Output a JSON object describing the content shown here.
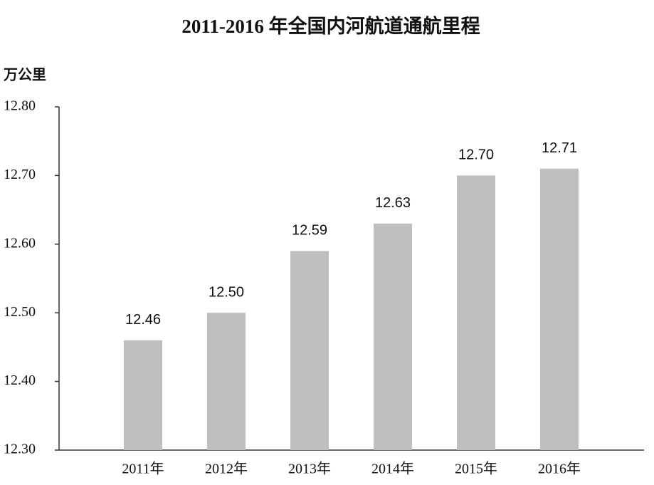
{
  "chart_data": {
    "type": "bar",
    "title": "2011-2016 年全国内河航道通航里程",
    "y_label": "万公里",
    "categories": [
      "2011年",
      "2012年",
      "2013年",
      "2014年",
      "2015年",
      "2016年"
    ],
    "values": [
      12.46,
      12.5,
      12.59,
      12.63,
      12.7,
      12.71
    ],
    "value_labels": [
      "12.46",
      "12.50",
      "12.59",
      "12.63",
      "12.70",
      "12.71"
    ],
    "color": "#bfbfbf",
    "ylim": [
      12.3,
      12.8
    ],
    "yticks": [
      {
        "value": 12.3,
        "label": "12.30"
      },
      {
        "value": 12.4,
        "label": "12.40"
      },
      {
        "value": 12.5,
        "label": "12.50"
      },
      {
        "value": 12.6,
        "label": "12.60"
      },
      {
        "value": 12.7,
        "label": "12.70"
      },
      {
        "value": 12.8,
        "label": "12.80"
      }
    ],
    "grid": false
  }
}
